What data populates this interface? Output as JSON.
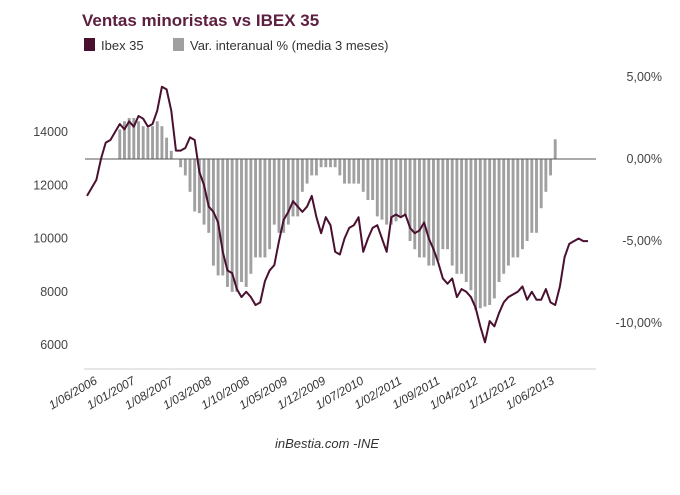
{
  "chart_data": {
    "type": "combo-bar-line",
    "title": "Ventas minoristas vs IBEX 35",
    "source": "inBestia.com -INE",
    "legend": [
      {
        "name": "Ibex 35",
        "color": "#4a1030",
        "kind": "line"
      },
      {
        "name": "Var. interanual % (media 3 meses)",
        "color": "#a0a0a0",
        "kind": "bar"
      }
    ],
    "left_axis": {
      "ticks": [
        6000,
        8000,
        10000,
        12000,
        14000
      ],
      "labels": [
        "6000",
        "8000",
        "10000",
        "12000",
        "14000"
      ]
    },
    "right_axis": {
      "ticks": [
        5,
        0,
        -5,
        -10
      ],
      "labels": [
        "5,00%",
        "0,00%",
        "-5,00%",
        "-10,00%"
      ]
    },
    "x_labels": [
      "1/06/2006",
      "1/01/2007",
      "1/08/2007",
      "1/03/2008",
      "1/10/2008",
      "1/05/2009",
      "1/12/2009",
      "1/07/2010",
      "1/02/2011",
      "1/09/2011",
      "1/04/2012",
      "1/11/2012",
      "1/06/2013"
    ],
    "series": [
      {
        "name": "Var. interanual % (media 3 meses)",
        "axis": "right",
        "values": [
          null,
          null,
          null,
          null,
          null,
          null,
          null,
          1.8,
          2.3,
          2.5,
          2.5,
          2.3,
          2.0,
          1.9,
          2.0,
          2.3,
          2.0,
          1.3,
          0.5,
          0.0,
          -0.5,
          -1.0,
          -2.0,
          -3.2,
          -3.3,
          -4.0,
          -4.5,
          -6.5,
          -7.1,
          -7.1,
          -7.8,
          -8.1,
          -8.1,
          -7.5,
          -7.8,
          -7.0,
          -6.0,
          -6.0,
          -6.0,
          -5.5,
          -4.0,
          -4.5,
          -4.5,
          -4.0,
          -3.5,
          -3.5,
          -2.0,
          -1.5,
          -1.0,
          -1.0,
          -0.5,
          -0.5,
          -0.5,
          -0.5,
          -1.0,
          -1.5,
          -1.5,
          -1.5,
          -1.5,
          -2.0,
          -2.5,
          -2.5,
          -3.5,
          -3.7,
          -4.0,
          -4.0,
          -3.8,
          -3.5,
          -3.5,
          -5.0,
          -5.5,
          -6.0,
          -6.0,
          -6.5,
          -6.5,
          -6.2,
          -5.5,
          -5.5,
          -6.5,
          -7.0,
          -7.0,
          -7.5,
          -8.0,
          -9.2,
          -9.1,
          -9.0,
          -8.9,
          -8.5,
          -7.5,
          -7.0,
          -6.5,
          -6.0,
          -6.0,
          -5.5,
          -5.0,
          -4.5,
          -4.5,
          -3.0,
          -2.0,
          -1.0,
          1.2,
          0.0
        ]
      },
      {
        "name": "Ibex 35",
        "axis": "left",
        "values": [
          11600,
          11900,
          12200,
          13000,
          13600,
          13700,
          14000,
          14300,
          14100,
          14400,
          14200,
          14600,
          14500,
          14200,
          14300,
          14800,
          15700,
          15600,
          14800,
          13300,
          13300,
          13400,
          13800,
          13700,
          12500,
          12000,
          11200,
          11000,
          10600,
          9500,
          8800,
          8700,
          8100,
          7800,
          8000,
          7800,
          7500,
          7600,
          8400,
          8800,
          9000,
          9900,
          10700,
          11000,
          11400,
          11200,
          11000,
          11200,
          11600,
          10800,
          10200,
          10800,
          10500,
          9500,
          9400,
          10000,
          10400,
          10500,
          10800,
          9500,
          10000,
          10400,
          10500,
          10000,
          9500,
          10800,
          10900,
          10800,
          10900,
          10400,
          10200,
          10300,
          10600,
          10000,
          9600,
          9100,
          8500,
          8300,
          8500,
          7800,
          8100,
          8000,
          7800,
          7400,
          6700,
          6100,
          6900,
          6700,
          7200,
          7600,
          7800,
          7900,
          8000,
          8200,
          7700,
          8000,
          7700,
          7700,
          8100,
          7600,
          7500,
          8200,
          9300,
          9800,
          9900,
          10000,
          9900,
          9900
        ]
      }
    ]
  }
}
